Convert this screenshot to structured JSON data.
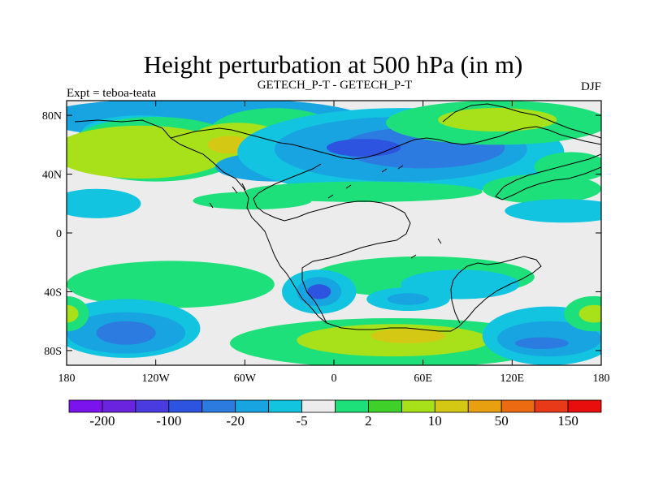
{
  "chart_data": {
    "type": "heatmap",
    "title": "Height perturbation at 500 hPa (in m)",
    "left_label": "Expt = teboa-teata",
    "center_label": "GETECH_P-T - GETECH_P-T",
    "right_label": "DJF",
    "lon_range": [
      -180,
      180
    ],
    "lat_range": [
      -90,
      90
    ],
    "x_ticks": [
      {
        "value": -180,
        "label": "180"
      },
      {
        "value": -120,
        "label": "120W"
      },
      {
        "value": -60,
        "label": "60W"
      },
      {
        "value": 0,
        "label": "0"
      },
      {
        "value": 60,
        "label": "60E"
      },
      {
        "value": 120,
        "label": "120E"
      },
      {
        "value": 180,
        "label": "180"
      }
    ],
    "y_ticks": [
      {
        "value": 80,
        "label": "80N"
      },
      {
        "value": 40,
        "label": "40N"
      },
      {
        "value": 0,
        "label": "0"
      },
      {
        "value": -40,
        "label": "40S"
      },
      {
        "value": -80,
        "label": "80S"
      }
    ],
    "colorbar": {
      "colors": [
        "#7a13ee",
        "#6a24e0",
        "#4a3be0",
        "#2d54e0",
        "#2b7be0",
        "#17a4e0",
        "#12c4e0",
        "#ececec",
        "#1ee07a",
        "#40d02a",
        "#a8e01a",
        "#d4c814",
        "#e8a010",
        "#ec6a10",
        "#e83a18",
        "#e80e0e"
      ],
      "labels": [
        {
          "boundary": 1,
          "text": "-200"
        },
        {
          "boundary": 3,
          "text": "-100"
        },
        {
          "boundary": 5,
          "text": "-20"
        },
        {
          "boundary": 7,
          "text": "-5"
        },
        {
          "boundary": 9,
          "text": "2"
        },
        {
          "boundary": 11,
          "text": "10"
        },
        {
          "boundary": 13,
          "text": "50"
        },
        {
          "boundary": 15,
          "text": "150"
        }
      ]
    },
    "regions": [
      {
        "level": 5,
        "lon": -90,
        "lat": 78,
        "rx": 110,
        "ry": 14
      },
      {
        "level": 6,
        "lon": -130,
        "lat": 68,
        "rx": 40,
        "ry": 12
      },
      {
        "level": 4,
        "lon": -135,
        "lat": 73,
        "rx": 14,
        "ry": 4
      },
      {
        "level": 8,
        "lon": -120,
        "lat": 57,
        "rx": 60,
        "ry": 22
      },
      {
        "level": 10,
        "lon": -130,
        "lat": 55,
        "rx": 60,
        "ry": 18
      },
      {
        "level": 8,
        "lon": -40,
        "lat": 67,
        "rx": 45,
        "ry": 18
      },
      {
        "level": 10,
        "lon": -65,
        "lat": 63,
        "rx": 32,
        "ry": 12
      },
      {
        "level": 11,
        "lon": -70,
        "lat": 60,
        "rx": 15,
        "ry": 6
      },
      {
        "level": 5,
        "lon": -40,
        "lat": 45,
        "rx": 40,
        "ry": 10
      },
      {
        "level": 6,
        "lon": 45,
        "lat": 55,
        "rx": 110,
        "ry": 30
      },
      {
        "level": 5,
        "lon": 45,
        "lat": 57,
        "rx": 85,
        "ry": 22
      },
      {
        "level": 4,
        "lon": 60,
        "lat": 58,
        "rx": 55,
        "ry": 14
      },
      {
        "level": 3,
        "lon": 20,
        "lat": 58,
        "rx": 25,
        "ry": 6
      },
      {
        "level": 8,
        "lon": 110,
        "lat": 75,
        "rx": 75,
        "ry": 15
      },
      {
        "level": 10,
        "lon": 110,
        "lat": 77,
        "rx": 40,
        "ry": 8
      },
      {
        "level": 8,
        "lon": 160,
        "lat": 45,
        "rx": 25,
        "ry": 10
      },
      {
        "level": 8,
        "lon": 140,
        "lat": 30,
        "rx": 40,
        "ry": 10
      },
      {
        "level": 8,
        "lon": 20,
        "lat": 28,
        "rx": 80,
        "ry": 7
      },
      {
        "level": 8,
        "lon": -55,
        "lat": 22,
        "rx": 40,
        "ry": 6
      },
      {
        "level": 6,
        "lon": -160,
        "lat": 20,
        "rx": 30,
        "ry": 10
      },
      {
        "level": 6,
        "lon": 155,
        "lat": 15,
        "rx": 40,
        "ry": 8
      },
      {
        "level": 8,
        "lon": -110,
        "lat": -35,
        "rx": 70,
        "ry": 16
      },
      {
        "level": 8,
        "lon": 60,
        "lat": -30,
        "rx": 75,
        "ry": 14
      },
      {
        "level": 6,
        "lon": 85,
        "lat": -35,
        "rx": 40,
        "ry": 10
      },
      {
        "level": 6,
        "lon": -140,
        "lat": -65,
        "rx": 50,
        "ry": 20
      },
      {
        "level": 5,
        "lon": -140,
        "lat": -68,
        "rx": 40,
        "ry": 14
      },
      {
        "level": 4,
        "lon": -140,
        "lat": -68,
        "rx": 20,
        "ry": 8
      },
      {
        "level": 8,
        "lon": -180,
        "lat": -55,
        "rx": 15,
        "ry": 12
      },
      {
        "level": 10,
        "lon": -180,
        "lat": -55,
        "rx": 8,
        "ry": 6
      },
      {
        "level": 6,
        "lon": -10,
        "lat": -40,
        "rx": 25,
        "ry": 15
      },
      {
        "level": 5,
        "lon": -10,
        "lat": -40,
        "rx": 15,
        "ry": 10
      },
      {
        "level": 3,
        "lon": -10,
        "lat": -40,
        "rx": 8,
        "ry": 5
      },
      {
        "level": 6,
        "lon": 50,
        "lat": -45,
        "rx": 28,
        "ry": 8
      },
      {
        "level": 5,
        "lon": 50,
        "lat": -45,
        "rx": 14,
        "ry": 4
      },
      {
        "level": 8,
        "lon": 40,
        "lat": -75,
        "rx": 110,
        "ry": 17
      },
      {
        "level": 10,
        "lon": 40,
        "lat": -73,
        "rx": 65,
        "ry": 11
      },
      {
        "level": 11,
        "lon": 50,
        "lat": -70,
        "rx": 25,
        "ry": 5
      },
      {
        "level": 6,
        "lon": 145,
        "lat": -70,
        "rx": 45,
        "ry": 20
      },
      {
        "level": 5,
        "lon": 145,
        "lat": -72,
        "rx": 35,
        "ry": 12
      },
      {
        "level": 4,
        "lon": 140,
        "lat": -75,
        "rx": 18,
        "ry": 4
      },
      {
        "level": 8,
        "lon": 175,
        "lat": -55,
        "rx": 20,
        "ry": 12
      },
      {
        "level": 10,
        "lon": 175,
        "lat": -55,
        "rx": 10,
        "ry": 6
      }
    ]
  }
}
